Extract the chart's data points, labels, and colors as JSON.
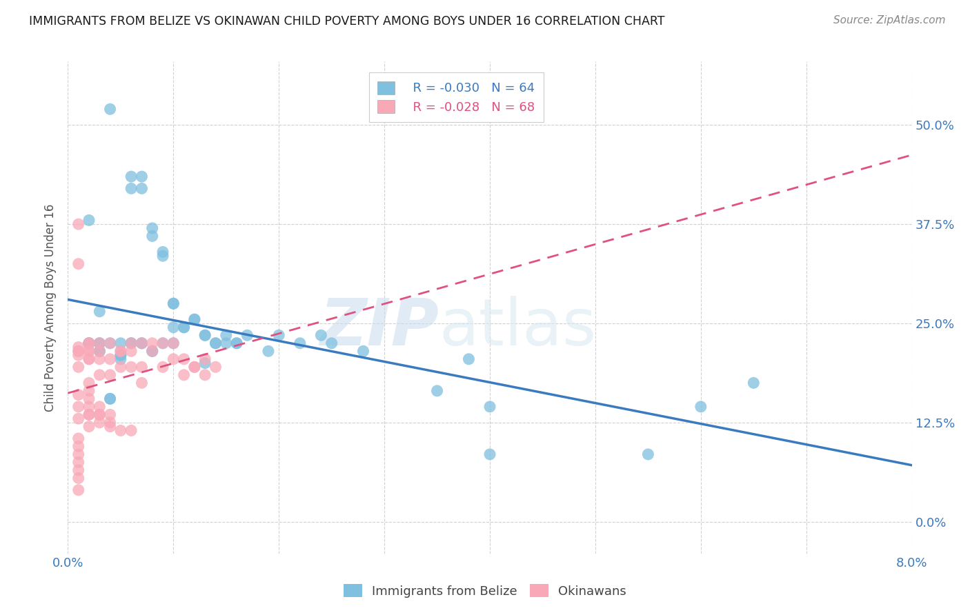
{
  "title": "IMMIGRANTS FROM BELIZE VS OKINAWAN CHILD POVERTY AMONG BOYS UNDER 16 CORRELATION CHART",
  "source": "Source: ZipAtlas.com",
  "ylabel": "Child Poverty Among Boys Under 16",
  "right_yticks": [
    0.0,
    0.125,
    0.25,
    0.375,
    0.5
  ],
  "right_yticklabels": [
    "0.0%",
    "12.5%",
    "25.0%",
    "37.5%",
    "50.0%"
  ],
  "xticks": [
    0.0,
    0.01,
    0.02,
    0.03,
    0.04,
    0.05,
    0.06,
    0.07,
    0.08
  ],
  "xticklabels": [
    "0.0%",
    "",
    "",
    "",
    "",
    "",
    "",
    "",
    "8.0%"
  ],
  "xmin": 0.0,
  "xmax": 0.08,
  "ymin": -0.04,
  "ymax": 0.58,
  "legend_blue_R": "R = -0.030",
  "legend_blue_N": "N = 64",
  "legend_pink_R": "R = -0.028",
  "legend_pink_N": "N = 68",
  "legend_label_blue": "Immigrants from Belize",
  "legend_label_pink": "Okinawans",
  "blue_color": "#7fbfdf",
  "pink_color": "#f9a8b8",
  "blue_trend_color": "#3a7abf",
  "pink_trend_color": "#e05080",
  "watermark_zip": "ZIP",
  "watermark_atlas": "atlas",
  "blue_scatter_x": [
    0.004,
    0.006,
    0.007,
    0.008,
    0.009,
    0.01,
    0.01,
    0.011,
    0.012,
    0.013,
    0.013,
    0.014,
    0.015,
    0.015,
    0.016,
    0.017,
    0.002,
    0.003,
    0.004,
    0.005,
    0.005,
    0.006,
    0.007,
    0.008,
    0.002,
    0.002,
    0.003,
    0.003,
    0.004,
    0.005,
    0.019,
    0.022,
    0.025,
    0.028,
    0.035,
    0.038,
    0.04,
    0.055,
    0.065,
    0.002,
    0.002,
    0.003,
    0.006,
    0.007,
    0.008,
    0.009,
    0.01,
    0.011,
    0.012,
    0.013,
    0.014,
    0.016,
    0.004,
    0.006,
    0.007,
    0.008,
    0.009,
    0.01,
    0.02,
    0.024,
    0.04,
    0.06,
    0.003,
    0.005
  ],
  "blue_scatter_y": [
    0.52,
    0.435,
    0.435,
    0.37,
    0.34,
    0.275,
    0.245,
    0.245,
    0.255,
    0.235,
    0.2,
    0.225,
    0.235,
    0.225,
    0.225,
    0.235,
    0.38,
    0.265,
    0.155,
    0.21,
    0.205,
    0.225,
    0.225,
    0.215,
    0.225,
    0.225,
    0.225,
    0.215,
    0.225,
    0.225,
    0.215,
    0.225,
    0.225,
    0.215,
    0.165,
    0.205,
    0.085,
    0.085,
    0.175,
    0.225,
    0.225,
    0.225,
    0.225,
    0.225,
    0.215,
    0.225,
    0.225,
    0.245,
    0.255,
    0.235,
    0.225,
    0.225,
    0.155,
    0.42,
    0.42,
    0.36,
    0.335,
    0.275,
    0.235,
    0.235,
    0.145,
    0.145,
    0.215,
    0.21
  ],
  "pink_scatter_x": [
    0.001,
    0.001,
    0.001,
    0.001,
    0.001,
    0.001,
    0.001,
    0.001,
    0.002,
    0.002,
    0.002,
    0.002,
    0.002,
    0.002,
    0.002,
    0.003,
    0.003,
    0.003,
    0.003,
    0.004,
    0.004,
    0.004,
    0.005,
    0.005,
    0.006,
    0.006,
    0.007,
    0.007,
    0.008,
    0.009,
    0.01,
    0.011,
    0.012,
    0.013,
    0.014,
    0.001,
    0.001,
    0.001,
    0.001,
    0.001,
    0.001,
    0.001,
    0.002,
    0.002,
    0.002,
    0.002,
    0.003,
    0.003,
    0.003,
    0.004,
    0.004,
    0.005,
    0.006,
    0.007,
    0.008,
    0.009,
    0.01,
    0.011,
    0.012,
    0.013,
    0.001,
    0.001,
    0.002,
    0.002,
    0.003,
    0.004,
    0.005,
    0.006
  ],
  "pink_scatter_y": [
    0.375,
    0.325,
    0.22,
    0.215,
    0.215,
    0.21,
    0.195,
    0.16,
    0.225,
    0.225,
    0.215,
    0.215,
    0.205,
    0.205,
    0.175,
    0.225,
    0.215,
    0.205,
    0.185,
    0.225,
    0.205,
    0.185,
    0.215,
    0.195,
    0.225,
    0.195,
    0.225,
    0.195,
    0.225,
    0.225,
    0.225,
    0.205,
    0.195,
    0.205,
    0.195,
    0.105,
    0.095,
    0.085,
    0.075,
    0.065,
    0.055,
    0.04,
    0.165,
    0.155,
    0.145,
    0.135,
    0.145,
    0.135,
    0.125,
    0.135,
    0.125,
    0.215,
    0.215,
    0.175,
    0.215,
    0.195,
    0.205,
    0.185,
    0.195,
    0.185,
    0.145,
    0.13,
    0.135,
    0.12,
    0.135,
    0.12,
    0.115,
    0.115
  ]
}
